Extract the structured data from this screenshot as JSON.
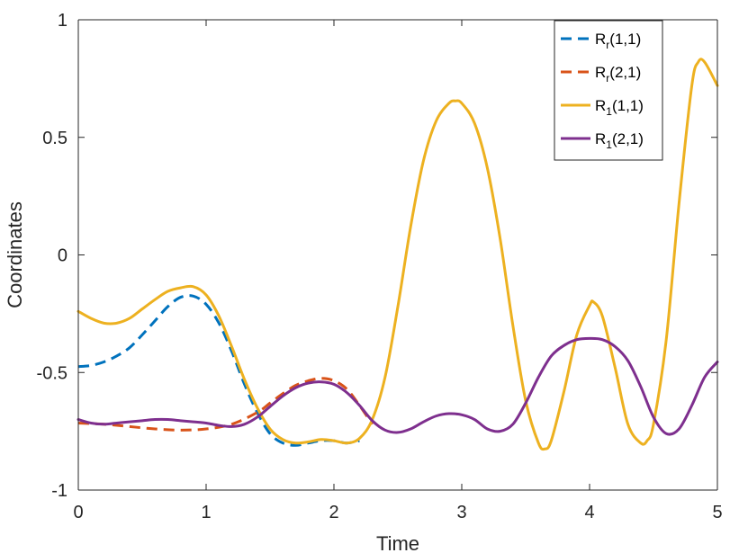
{
  "chart_data": {
    "type": "line",
    "title": "",
    "xlabel": "Time",
    "ylabel": "Coordinates",
    "xlim": [
      0,
      5
    ],
    "ylim": [
      -1,
      1
    ],
    "xticks": [
      0,
      1,
      2,
      3,
      4,
      5
    ],
    "xtick_labels": [
      "0",
      "1",
      "2",
      "3",
      "4",
      "5"
    ],
    "yticks": [
      -1,
      -0.5,
      0,
      0.5,
      1
    ],
    "ytick_labels": [
      "-1",
      "-0.5",
      "0",
      "0.5",
      "1"
    ],
    "grid": false,
    "legend_position": "top-right",
    "series": [
      {
        "name": "R_r(1,1)",
        "legend_main": "R",
        "legend_sub": "r",
        "legend_rest": "(1,1)",
        "color": "#0072BD",
        "dash": true,
        "x": [
          0,
          0.1,
          0.2,
          0.3,
          0.4,
          0.5,
          0.6,
          0.7,
          0.8,
          0.9,
          1.0,
          1.1,
          1.2,
          1.3,
          1.4,
          1.5,
          1.6,
          1.7,
          1.8,
          1.9,
          2.0,
          2.1,
          2.2
        ],
        "y": [
          -0.475,
          -0.47,
          -0.455,
          -0.43,
          -0.395,
          -0.34,
          -0.28,
          -0.22,
          -0.18,
          -0.175,
          -0.21,
          -0.29,
          -0.41,
          -0.55,
          -0.67,
          -0.76,
          -0.8,
          -0.81,
          -0.8,
          -0.79,
          -0.79,
          -0.8,
          -0.79
        ]
      },
      {
        "name": "R_r(2,1)",
        "legend_main": "R",
        "legend_sub": "r",
        "legend_rest": "(2,1)",
        "color": "#D95319",
        "dash": true,
        "x": [
          0,
          0.2,
          0.4,
          0.6,
          0.8,
          1.0,
          1.2,
          1.4,
          1.5,
          1.6,
          1.7,
          1.8,
          1.9,
          2.0,
          2.1,
          2.2,
          2.3
        ],
        "y": [
          -0.715,
          -0.72,
          -0.73,
          -0.74,
          -0.745,
          -0.74,
          -0.72,
          -0.67,
          -0.63,
          -0.59,
          -0.555,
          -0.535,
          -0.525,
          -0.535,
          -0.57,
          -0.64,
          -0.72
        ]
      },
      {
        "name": "R_1(1,1)",
        "legend_main": "R",
        "legend_sub": "1",
        "legend_rest": "(1,1)",
        "color": "#EDB120",
        "dash": false,
        "x": [
          0,
          0.1,
          0.2,
          0.3,
          0.4,
          0.5,
          0.6,
          0.7,
          0.8,
          0.9,
          1.0,
          1.1,
          1.2,
          1.3,
          1.4,
          1.5,
          1.6,
          1.7,
          1.8,
          1.9,
          2.0,
          2.1,
          2.2,
          2.3,
          2.4,
          2.5,
          2.6,
          2.7,
          2.8,
          2.9,
          2.95,
          3.0,
          3.1,
          3.2,
          3.3,
          3.4,
          3.5,
          3.6,
          3.65,
          3.7,
          3.8,
          3.9,
          4.0,
          4.03,
          4.1,
          4.2,
          4.3,
          4.4,
          4.45,
          4.5,
          4.6,
          4.7,
          4.8,
          4.85,
          4.9,
          5.0
        ],
        "y": [
          -0.24,
          -0.27,
          -0.29,
          -0.29,
          -0.27,
          -0.23,
          -0.19,
          -0.155,
          -0.14,
          -0.135,
          -0.17,
          -0.26,
          -0.39,
          -0.53,
          -0.65,
          -0.74,
          -0.785,
          -0.8,
          -0.795,
          -0.785,
          -0.79,
          -0.8,
          -0.78,
          -0.7,
          -0.52,
          -0.22,
          0.12,
          0.4,
          0.57,
          0.645,
          0.655,
          0.645,
          0.56,
          0.37,
          0.07,
          -0.3,
          -0.62,
          -0.8,
          -0.825,
          -0.79,
          -0.58,
          -0.34,
          -0.215,
          -0.2,
          -0.26,
          -0.48,
          -0.72,
          -0.8,
          -0.79,
          -0.72,
          -0.36,
          0.22,
          0.72,
          0.82,
          0.82,
          0.72
        ]
      },
      {
        "name": "R_1(2,1)",
        "legend_main": "R",
        "legend_sub": "1",
        "legend_rest": "(2,1)",
        "color": "#7E2F8E",
        "dash": false,
        "x": [
          0,
          0.1,
          0.2,
          0.3,
          0.4,
          0.5,
          0.6,
          0.7,
          0.8,
          0.9,
          1.0,
          1.1,
          1.2,
          1.3,
          1.4,
          1.5,
          1.6,
          1.7,
          1.8,
          1.9,
          2.0,
          2.1,
          2.2,
          2.3,
          2.4,
          2.5,
          2.6,
          2.7,
          2.8,
          2.9,
          3.0,
          3.1,
          3.2,
          3.3,
          3.4,
          3.5,
          3.6,
          3.7,
          3.8,
          3.9,
          4.0,
          4.1,
          4.2,
          4.3,
          4.4,
          4.5,
          4.6,
          4.7,
          4.8,
          4.9,
          5.0
        ],
        "y": [
          -0.7,
          -0.715,
          -0.72,
          -0.715,
          -0.71,
          -0.705,
          -0.7,
          -0.7,
          -0.705,
          -0.71,
          -0.715,
          -0.725,
          -0.73,
          -0.72,
          -0.69,
          -0.645,
          -0.6,
          -0.565,
          -0.545,
          -0.54,
          -0.55,
          -0.585,
          -0.64,
          -0.705,
          -0.745,
          -0.755,
          -0.74,
          -0.71,
          -0.685,
          -0.675,
          -0.68,
          -0.7,
          -0.74,
          -0.75,
          -0.72,
          -0.63,
          -0.52,
          -0.43,
          -0.385,
          -0.36,
          -0.355,
          -0.36,
          -0.39,
          -0.45,
          -0.56,
          -0.69,
          -0.76,
          -0.74,
          -0.64,
          -0.52,
          -0.455
        ]
      }
    ]
  }
}
